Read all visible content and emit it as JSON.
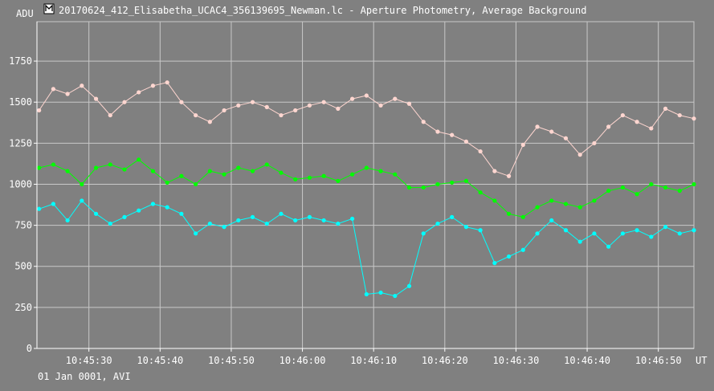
{
  "window": {
    "title": "20170624_412_Elisabetha_UCAC4_356139695_Newman.lc - Aperture Photometry, Average Background",
    "footer": "01 Jan 0001, AVI"
  },
  "colors": {
    "background": "#808080",
    "grid": "#c8c8c8",
    "text": "#ffffff",
    "series_pink": "#ffd6d0",
    "series_green": "#00ff00",
    "series_cyan": "#00ffff"
  },
  "chart_data": {
    "type": "line",
    "title": "20170624_412_Elisabetha_UCAC4_356139695_Newman.lc - Aperture Photometry, Average Background",
    "xlabel": "UT",
    "ylabel": "ADU",
    "x_ticks": [
      "10:45:30",
      "10:45:40",
      "10:45:50",
      "10:46:00",
      "10:46:10",
      "10:46:20",
      "10:46:30",
      "10:46:40",
      "10:46:50"
    ],
    "y_ticks": [
      0,
      250,
      500,
      750,
      1000,
      1250,
      1500,
      1750
    ],
    "ylim": [
      0,
      1990
    ],
    "xlim_seconds": [
      22.7,
      115.0
    ],
    "grid": true,
    "legend": "none",
    "markers": true,
    "series": [
      {
        "color": "#ffd6d0",
        "x": [
          23,
          25,
          27,
          29,
          31,
          33,
          35,
          37,
          39,
          41,
          43,
          45,
          47,
          49,
          51,
          53,
          55,
          57,
          59,
          61,
          63,
          65,
          67,
          69,
          71,
          73,
          75,
          77,
          79,
          81,
          83,
          85,
          87,
          89,
          91,
          93,
          95,
          97,
          99,
          101,
          103,
          105,
          107,
          109,
          111,
          113,
          115
        ],
        "values": [
          1450,
          1580,
          1550,
          1600,
          1520,
          1420,
          1500,
          1560,
          1600,
          1620,
          1500,
          1420,
          1380,
          1450,
          1480,
          1500,
          1470,
          1420,
          1450,
          1480,
          1500,
          1460,
          1520,
          1540,
          1480,
          1520,
          1490,
          1380,
          1320,
          1300,
          1260,
          1200,
          1080,
          1050,
          1240,
          1350,
          1320,
          1280,
          1180,
          1250,
          1350,
          1420,
          1380,
          1340,
          1460,
          1420,
          1400
        ]
      },
      {
        "color": "#00ff00",
        "x": [
          23,
          25,
          27,
          29,
          31,
          33,
          35,
          37,
          39,
          41,
          43,
          45,
          47,
          49,
          51,
          53,
          55,
          57,
          59,
          61,
          63,
          65,
          67,
          69,
          71,
          73,
          75,
          77,
          79,
          81,
          83,
          85,
          87,
          89,
          91,
          93,
          95,
          97,
          99,
          101,
          103,
          105,
          107,
          109,
          111,
          113,
          115
        ],
        "values": [
          1100,
          1120,
          1080,
          1000,
          1100,
          1120,
          1090,
          1150,
          1080,
          1010,
          1050,
          1000,
          1080,
          1060,
          1100,
          1080,
          1120,
          1070,
          1030,
          1040,
          1050,
          1020,
          1060,
          1100,
          1080,
          1060,
          980,
          980,
          1000,
          1010,
          1020,
          950,
          900,
          820,
          800,
          860,
          900,
          880,
          860,
          900,
          960,
          980,
          940,
          1000,
          980,
          960,
          1000
        ]
      },
      {
        "color": "#00ffff",
        "x": [
          23,
          25,
          27,
          29,
          31,
          33,
          35,
          37,
          39,
          41,
          43,
          45,
          47,
          49,
          51,
          53,
          55,
          57,
          59,
          61,
          63,
          65,
          67,
          69,
          71,
          73,
          75,
          77,
          79,
          81,
          83,
          85,
          87,
          89,
          91,
          93,
          95,
          97,
          99,
          101,
          103,
          105,
          107,
          109,
          111,
          113,
          115
        ],
        "values": [
          850,
          880,
          780,
          900,
          820,
          760,
          800,
          840,
          880,
          860,
          820,
          700,
          760,
          740,
          780,
          800,
          760,
          820,
          780,
          800,
          780,
          760,
          790,
          330,
          340,
          320,
          380,
          700,
          760,
          800,
          740,
          720,
          520,
          560,
          600,
          700,
          780,
          720,
          650,
          700,
          620,
          700,
          720,
          680,
          740,
          700,
          720
        ]
      }
    ]
  }
}
